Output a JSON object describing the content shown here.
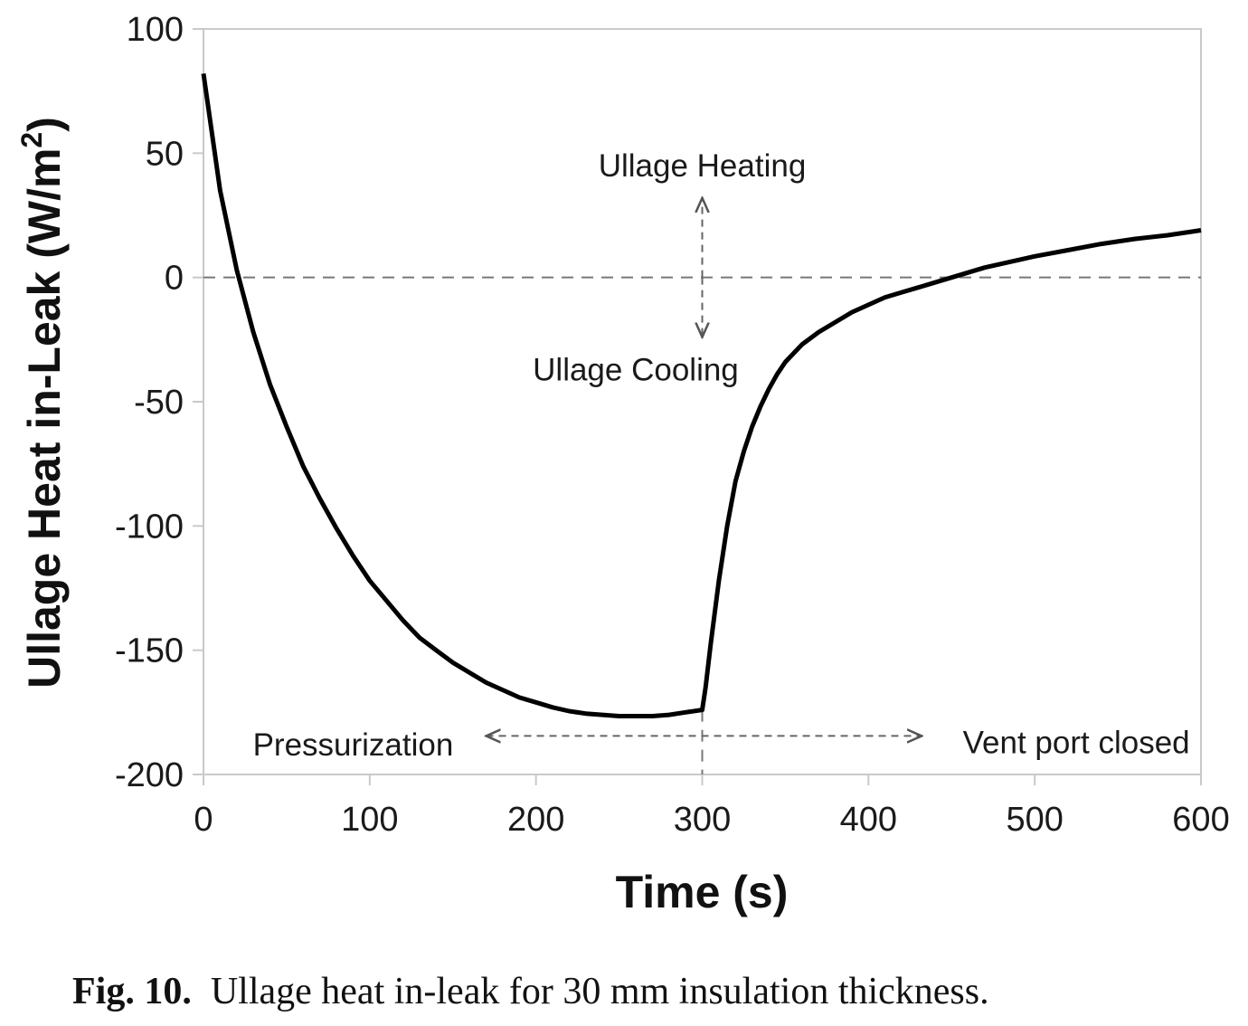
{
  "caption": {
    "label": "Fig. 10.",
    "text": "Ullage heat in-leak for 30 mm insulation thickness."
  },
  "chart_data": {
    "type": "line",
    "title": "",
    "xlabel": "Time (s)",
    "ylabel_main": "Ullage Heat in-Leak (W/m",
    "ylabel_sup": "2",
    "ylabel_end": ")",
    "xlim": [
      0,
      600
    ],
    "ylim": [
      -200,
      100
    ],
    "xticks": [
      0,
      100,
      200,
      300,
      400,
      500,
      600
    ],
    "yticks": [
      100,
      50,
      0,
      -50,
      -100,
      -150,
      -200
    ],
    "grid": false,
    "reference_lines": [
      {
        "orientation": "horizontal",
        "value": 0,
        "style": "dashed"
      },
      {
        "orientation": "vertical",
        "value": 300,
        "style": "dashed"
      }
    ],
    "series": [
      {
        "x": [
          0,
          10,
          20,
          30,
          40,
          50,
          60,
          70,
          80,
          90,
          100,
          110,
          120,
          130,
          140,
          150,
          160,
          170,
          180,
          190,
          200,
          210,
          220,
          230,
          240,
          250,
          260,
          270,
          280,
          290,
          300,
          302,
          305,
          310,
          315,
          320,
          325,
          330,
          335,
          340,
          345,
          350,
          360,
          370,
          380,
          390,
          400,
          410,
          420,
          430,
          440,
          450,
          460,
          470,
          480,
          490,
          500,
          520,
          540,
          560,
          580,
          600
        ],
        "y": [
          82,
          35,
          3,
          -22,
          -43,
          -60,
          -76,
          -89,
          -101,
          -112,
          -122,
          -130,
          -138,
          -145,
          -150,
          -155,
          -159,
          -163,
          -166,
          -169,
          -171,
          -173,
          -174.5,
          -175.5,
          -176,
          -176.5,
          -176.5,
          -176.5,
          -176,
          -175,
          -174,
          -165,
          -148,
          -122,
          -100,
          -82,
          -70,
          -60,
          -52,
          -45,
          -39,
          -34,
          -27,
          -22,
          -18,
          -14,
          -11,
          -8,
          -6,
          -4,
          -2,
          0,
          2,
          4,
          5.5,
          7,
          8.5,
          11,
          13.5,
          15.5,
          17,
          19
        ]
      }
    ],
    "annotations": [
      {
        "text": "Ullage Heating",
        "x": 300,
        "y": 45
      },
      {
        "text": "Ullage Cooling",
        "x": 260,
        "y": -37
      },
      {
        "text": "Pressurization",
        "x": 90,
        "y": -188
      },
      {
        "text": "Vent port closed",
        "x": 525,
        "y": -187
      }
    ]
  }
}
